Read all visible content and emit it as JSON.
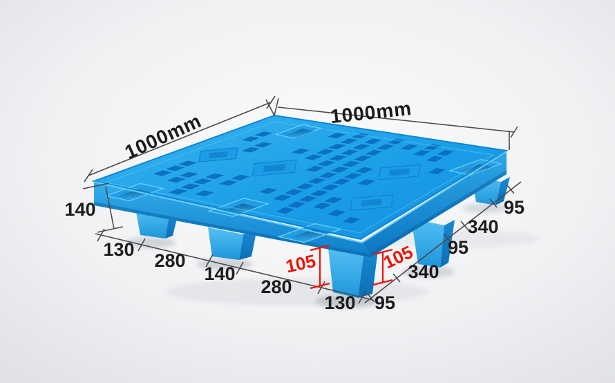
{
  "diagram": {
    "product": "nestable-plastic-pallet",
    "edge_labels": {
      "left": "1000mm",
      "right": "1000mm"
    },
    "height_label": "140",
    "front_left_chain": [
      "130",
      "280",
      "140",
      "280",
      "130"
    ],
    "front_right_chain": [
      "95",
      "340",
      "95",
      "340",
      "95"
    ],
    "clearance_labels": [
      "105",
      "105"
    ],
    "colors": {
      "pallet_blue": "#1b9fe8",
      "pallet_hole_blue": "#0a6cbe",
      "pallet_light_blue": "#4fbdf3",
      "dimension_line": "#4a4a4a",
      "dimension_text": "#1c1c1c",
      "clearance_red": "#ec1407",
      "background": "#eceef0"
    }
  }
}
